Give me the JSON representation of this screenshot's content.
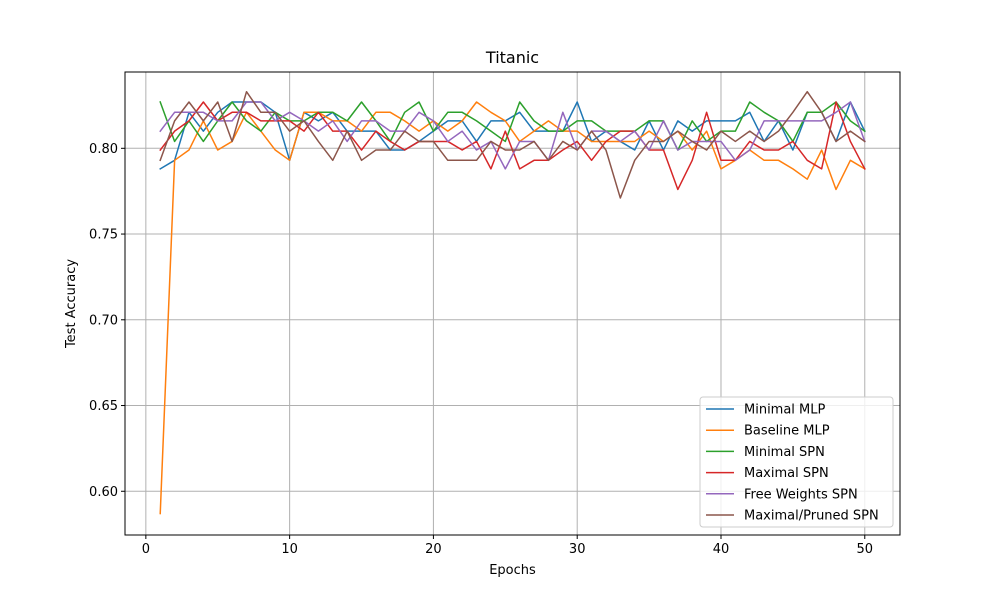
{
  "chart_data": {
    "type": "line",
    "title": "Titanic",
    "xlabel": "Epochs",
    "ylabel": "Test Accuracy",
    "xlim": [
      -1.45,
      52.45
    ],
    "ylim": [
      0.5745,
      0.8445
    ],
    "xticks": [
      0,
      10,
      20,
      30,
      40,
      50
    ],
    "yticks": [
      0.6,
      0.65,
      0.7,
      0.75,
      0.8
    ],
    "xtick_labels": [
      "0",
      "10",
      "20",
      "30",
      "40",
      "50"
    ],
    "ytick_labels": [
      "0.60",
      "0.65",
      "0.70",
      "0.75",
      "0.80"
    ],
    "grid": true,
    "legend_position": "lower-right",
    "x": [
      1,
      2,
      3,
      4,
      5,
      6,
      7,
      8,
      9,
      10,
      11,
      12,
      13,
      14,
      15,
      16,
      17,
      18,
      19,
      20,
      21,
      22,
      23,
      24,
      25,
      26,
      27,
      28,
      29,
      30,
      31,
      32,
      33,
      34,
      35,
      36,
      37,
      38,
      39,
      40,
      41,
      42,
      43,
      44,
      45,
      46,
      47,
      48,
      49,
      50
    ],
    "series": [
      {
        "name": "Minimal MLP",
        "color": "#1f77b4",
        "values": [
          0.788,
          0.793,
          0.821,
          0.81,
          0.821,
          0.827,
          0.827,
          0.827,
          0.821,
          0.793,
          0.821,
          0.816,
          0.821,
          0.81,
          0.81,
          0.81,
          0.799,
          0.799,
          0.804,
          0.81,
          0.816,
          0.816,
          0.804,
          0.816,
          0.816,
          0.821,
          0.81,
          0.81,
          0.81,
          0.827,
          0.804,
          0.81,
          0.804,
          0.799,
          0.816,
          0.799,
          0.816,
          0.81,
          0.816,
          0.816,
          0.816,
          0.821,
          0.804,
          0.816,
          0.799,
          0.821,
          0.821,
          0.804,
          0.827,
          0.81
        ]
      },
      {
        "name": "Baseline MLP",
        "color": "#ff7f0e",
        "values": [
          0.587,
          0.793,
          0.799,
          0.816,
          0.799,
          0.804,
          0.821,
          0.81,
          0.799,
          0.793,
          0.821,
          0.821,
          0.816,
          0.816,
          0.81,
          0.821,
          0.821,
          0.816,
          0.81,
          0.816,
          0.81,
          0.816,
          0.827,
          0.821,
          0.816,
          0.804,
          0.81,
          0.816,
          0.81,
          0.81,
          0.804,
          0.804,
          0.804,
          0.804,
          0.81,
          0.804,
          0.81,
          0.799,
          0.81,
          0.788,
          0.793,
          0.799,
          0.793,
          0.793,
          0.788,
          0.782,
          0.799,
          0.776,
          0.793,
          0.788
        ]
      },
      {
        "name": "Minimal SPN",
        "color": "#2ca02c",
        "values": [
          0.827,
          0.804,
          0.816,
          0.804,
          0.816,
          0.827,
          0.816,
          0.81,
          0.821,
          0.816,
          0.816,
          0.821,
          0.821,
          0.816,
          0.827,
          0.816,
          0.804,
          0.821,
          0.827,
          0.81,
          0.821,
          0.821,
          0.816,
          0.81,
          0.804,
          0.827,
          0.816,
          0.81,
          0.81,
          0.816,
          0.816,
          0.81,
          0.81,
          0.81,
          0.816,
          0.816,
          0.799,
          0.816,
          0.804,
          0.81,
          0.81,
          0.827,
          0.821,
          0.816,
          0.804,
          0.821,
          0.821,
          0.827,
          0.816,
          0.81
        ]
      },
      {
        "name": "Maximal SPN",
        "color": "#d62728",
        "values": [
          0.799,
          0.81,
          0.816,
          0.827,
          0.816,
          0.821,
          0.821,
          0.816,
          0.816,
          0.816,
          0.81,
          0.821,
          0.81,
          0.81,
          0.799,
          0.81,
          0.804,
          0.799,
          0.804,
          0.804,
          0.804,
          0.799,
          0.804,
          0.788,
          0.81,
          0.788,
          0.793,
          0.793,
          0.799,
          0.804,
          0.793,
          0.804,
          0.81,
          0.81,
          0.799,
          0.799,
          0.776,
          0.793,
          0.821,
          0.793,
          0.793,
          0.804,
          0.799,
          0.799,
          0.804,
          0.793,
          0.788,
          0.827,
          0.804,
          0.788
        ]
      },
      {
        "name": "Free Weights SPN",
        "color": "#9467bd",
        "values": [
          0.81,
          0.821,
          0.821,
          0.821,
          0.816,
          0.816,
          0.827,
          0.827,
          0.816,
          0.821,
          0.816,
          0.81,
          0.816,
          0.804,
          0.816,
          0.816,
          0.81,
          0.81,
          0.821,
          0.816,
          0.804,
          0.81,
          0.799,
          0.804,
          0.788,
          0.804,
          0.804,
          0.793,
          0.821,
          0.799,
          0.81,
          0.81,
          0.804,
          0.81,
          0.799,
          0.816,
          0.799,
          0.804,
          0.804,
          0.804,
          0.793,
          0.799,
          0.816,
          0.816,
          0.816,
          0.816,
          0.816,
          0.821,
          0.827,
          0.804
        ]
      },
      {
        "name": "Maximal/Pruned SPN",
        "color": "#8c564b",
        "values": [
          0.793,
          0.816,
          0.827,
          0.816,
          0.827,
          0.804,
          0.833,
          0.821,
          0.821,
          0.81,
          0.816,
          0.804,
          0.793,
          0.81,
          0.793,
          0.799,
          0.799,
          0.81,
          0.804,
          0.804,
          0.793,
          0.793,
          0.793,
          0.804,
          0.799,
          0.799,
          0.804,
          0.793,
          0.804,
          0.799,
          0.81,
          0.799,
          0.771,
          0.793,
          0.804,
          0.804,
          0.81,
          0.804,
          0.799,
          0.81,
          0.804,
          0.81,
          0.804,
          0.81,
          0.821,
          0.833,
          0.821,
          0.804,
          0.81,
          0.804
        ]
      }
    ]
  }
}
